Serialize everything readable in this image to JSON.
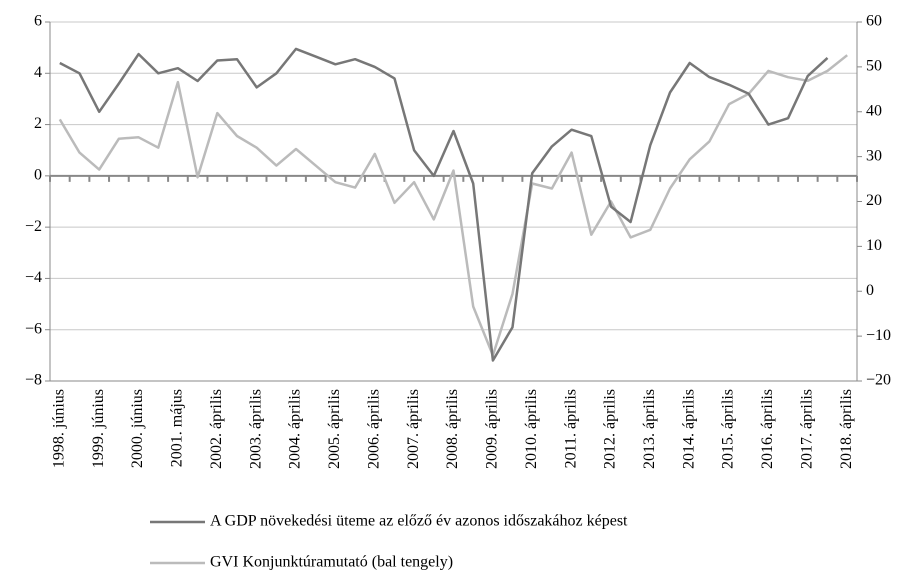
{
  "chart_data": {
    "type": "line",
    "categories": [
      "1998. június",
      null,
      "1999. június",
      null,
      "2000. június",
      null,
      "2001. május",
      null,
      "2002. április",
      null,
      "2003. április",
      null,
      "2004. április",
      null,
      "2005. április",
      null,
      "2006. április",
      null,
      "2007. április",
      null,
      "2008. április",
      null,
      "2009. április",
      null,
      "2010. április",
      null,
      "2011. április",
      null,
      "2012. április",
      null,
      "2013. április",
      null,
      "2014. április",
      null,
      "2015. április",
      null,
      "2016. április",
      null,
      "2017. április",
      null,
      "2018. április"
    ],
    "series": [
      {
        "name": "A GDP növekedési üteme az előző év azonos időszakához képest",
        "color": "#777777",
        "values": [
          4.4,
          4.0,
          2.5,
          3.6,
          4.75,
          4.0,
          4.2,
          3.7,
          4.5,
          4.55,
          3.45,
          4.0,
          4.95,
          4.65,
          4.35,
          4.55,
          4.25,
          3.8,
          1.0,
          0.0,
          1.75,
          -0.3,
          -7.2,
          -5.9,
          0.1,
          1.15,
          1.8,
          1.55,
          -1.2,
          -1.8,
          1.2,
          3.25,
          4.4,
          3.85,
          3.55,
          3.2,
          2.0,
          2.25,
          3.9,
          4.6,
          null
        ]
      },
      {
        "name": "GVI Konjunktúramutató (bal tengely)",
        "color": "#bbbbbb",
        "axis": "y2",
        "values": [
          38.3,
          30.9,
          27.1,
          34.0,
          34.3,
          32.0,
          46.6,
          25.4,
          39.7,
          34.6,
          32.0,
          28.0,
          31.7,
          28.0,
          24.3,
          23.1,
          30.6,
          19.7,
          24.3,
          16.0,
          26.9,
          -3.4,
          -14.3,
          -0.6,
          24.0,
          22.9,
          30.9,
          12.6,
          20.0,
          12.0,
          13.7,
          22.9,
          29.4,
          33.4,
          41.7,
          44.0,
          49.1,
          47.7,
          46.9,
          49.1,
          52.6
        ]
      }
    ],
    "ylim": [
      -8,
      6
    ],
    "yticks": [
      {
        "value": -8,
        "label": "−8"
      },
      {
        "value": -6,
        "label": "−6"
      },
      {
        "value": -4,
        "label": "−4"
      },
      {
        "value": -2,
        "label": "−2"
      },
      0,
      2,
      4,
      6
    ],
    "y2lim": [
      -20,
      60
    ],
    "y2ticks": [
      {
        "value": -20,
        "label": "−20"
      },
      {
        "value": -10,
        "label": "−10"
      },
      0,
      10,
      20,
      30,
      40,
      50,
      60
    ],
    "grid": true
  }
}
